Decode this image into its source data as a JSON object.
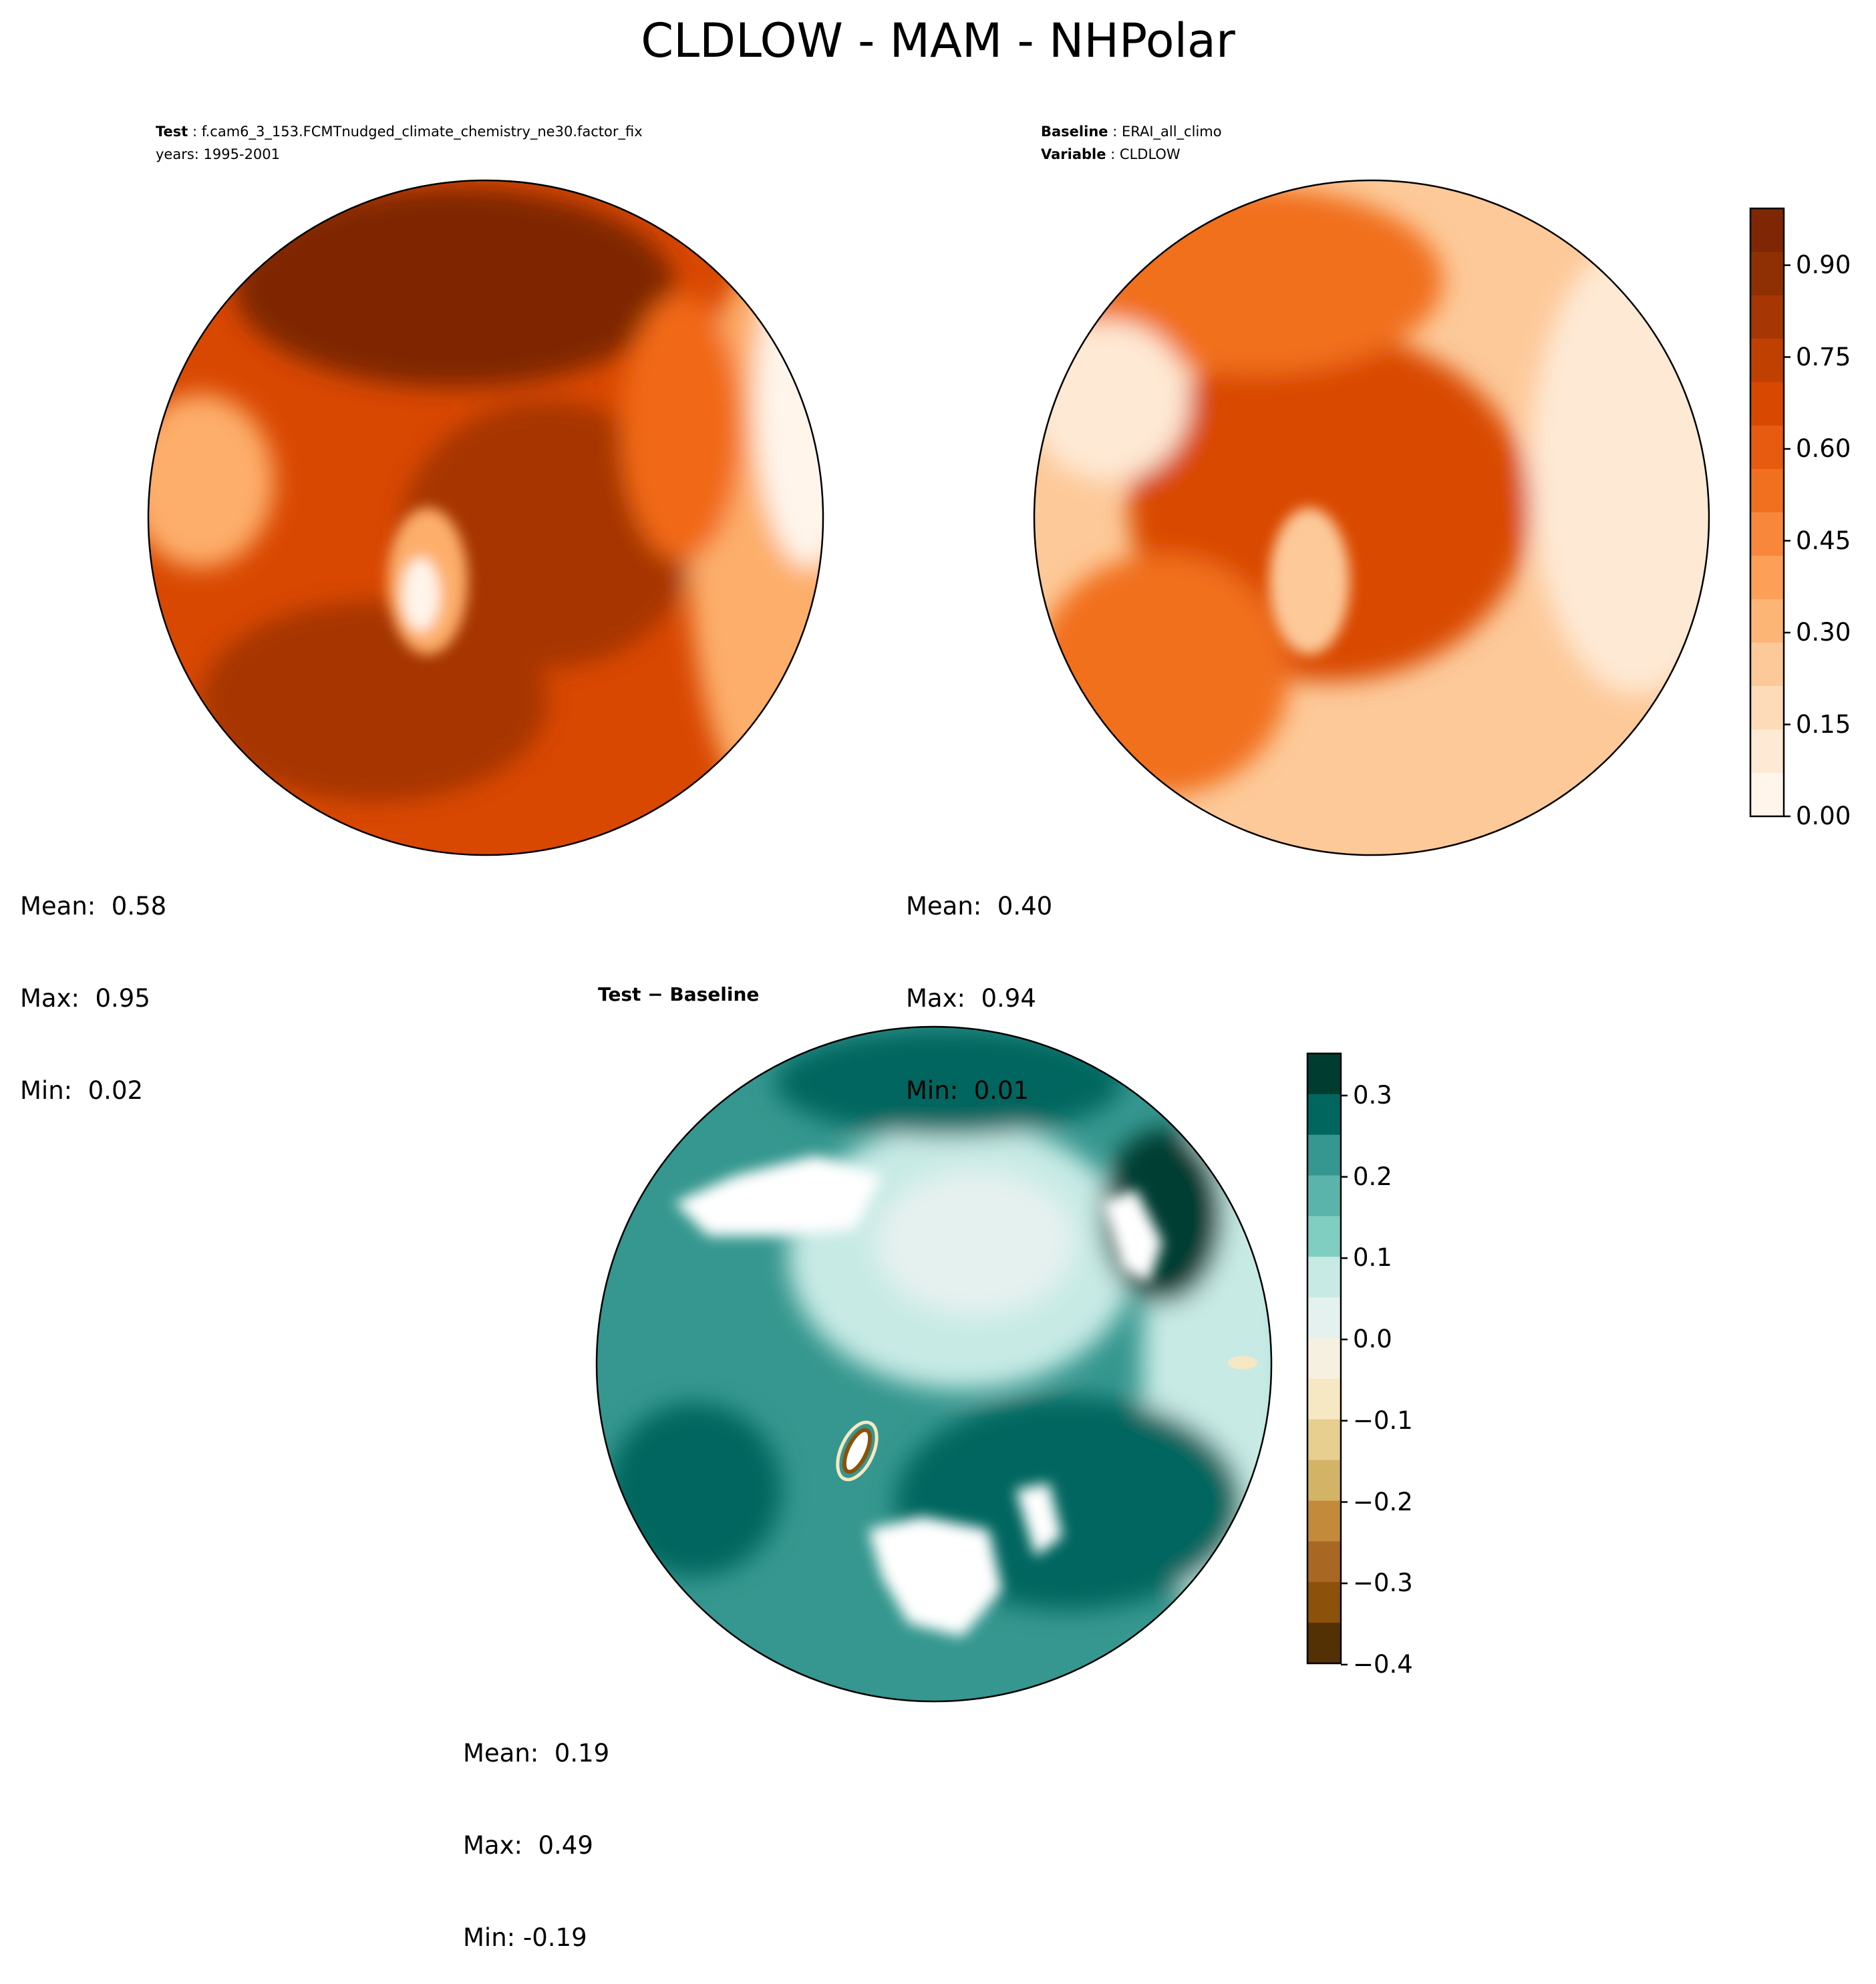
{
  "title": "CLDLOW - MAM - NHPolar",
  "panels": {
    "test": {
      "label": "Test",
      "case": "f.cam6_3_153.FCMTnudged_climate_chemistry_ne30.factor_fix",
      "years": "years: 1995-2001",
      "stats": {
        "mean": "Mean:  0.58",
        "max": "Max:  0.95",
        "min": "Min:  0.02"
      }
    },
    "baseline": {
      "label": "Baseline",
      "case": "ERAI_all_climo",
      "var_label": "Variable",
      "variable": "CLDLOW",
      "stats": {
        "mean": "Mean:  0.40",
        "max": "Max:  0.94",
        "min": "Min:  0.01"
      }
    },
    "diff": {
      "title": "Test − Baseline",
      "stats": {
        "mean": "Mean:  0.19",
        "max": "Max:  0.49",
        "min": "Min: -0.19"
      }
    }
  },
  "colorbars": {
    "main": {
      "ticks": [
        "0.00",
        "0.15",
        "0.30",
        "0.45",
        "0.60",
        "0.75",
        "0.90"
      ],
      "colors": [
        "#fff5eb",
        "#fee9d4",
        "#fddbb8",
        "#fdc999",
        "#fdb576",
        "#fd9f57",
        "#f9873b",
        "#f1701f",
        "#e65b0f",
        "#d94801",
        "#c04002",
        "#a63603",
        "#8f3003",
        "#7f2704"
      ]
    },
    "diff": {
      "ticks": [
        "0.3",
        "0.2",
        "0.1",
        "0.0",
        "−0.1",
        "−0.2",
        "−0.3",
        "−0.4"
      ],
      "colors": [
        "#003c30",
        "#01665e",
        "#35978f",
        "#5ab4ac",
        "#80cdc1",
        "#c7eae5",
        "#e4f1ef",
        "#f6f0e0",
        "#f6e8c3",
        "#e6cf8f",
        "#d3b467",
        "#c28a3a",
        "#a86722",
        "#8c510a",
        "#543005"
      ]
    }
  },
  "fill_colors": {
    "test": [
      "#d94801",
      "#a63603",
      "#7f2704",
      "#f16913",
      "#fdae6b",
      "#fff5eb"
    ],
    "baseline": [
      "#f1701f",
      "#fdc999",
      "#d94801",
      "#fee9d4",
      "#fff5eb"
    ],
    "diff": [
      "#35978f",
      "#01665e",
      "#003c30",
      "#c7eae5",
      "#e4f1ef",
      "#ffffff",
      "#f6e8c3",
      "#8c510a"
    ]
  }
}
